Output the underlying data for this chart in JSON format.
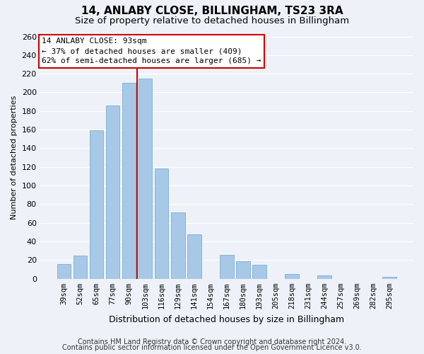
{
  "title": "14, ANLABY CLOSE, BILLINGHAM, TS23 3RA",
  "subtitle": "Size of property relative to detached houses in Billingham",
  "xlabel": "Distribution of detached houses by size in Billingham",
  "ylabel": "Number of detached properties",
  "categories": [
    "39sqm",
    "52sqm",
    "65sqm",
    "77sqm",
    "90sqm",
    "103sqm",
    "116sqm",
    "129sqm",
    "141sqm",
    "154sqm",
    "167sqm",
    "180sqm",
    "193sqm",
    "205sqm",
    "218sqm",
    "231sqm",
    "244sqm",
    "257sqm",
    "269sqm",
    "282sqm",
    "295sqm"
  ],
  "values": [
    16,
    25,
    159,
    186,
    210,
    215,
    118,
    71,
    48,
    0,
    26,
    19,
    15,
    0,
    5,
    0,
    4,
    0,
    0,
    0,
    2
  ],
  "bar_color": "#a8c8e8",
  "bar_edge_color": "#7ab0d0",
  "vline_color": "#cc0000",
  "annotation_title": "14 ANLABY CLOSE: 93sqm",
  "annotation_line1": "← 37% of detached houses are smaller (409)",
  "annotation_line2": "62% of semi-detached houses are larger (685) →",
  "annotation_box_color": "#ffffff",
  "annotation_box_edge": "#cc0000",
  "ylim": [
    0,
    260
  ],
  "yticks": [
    0,
    20,
    40,
    60,
    80,
    100,
    120,
    140,
    160,
    180,
    200,
    220,
    240,
    260
  ],
  "footer1": "Contains HM Land Registry data © Crown copyright and database right 2024.",
  "footer2": "Contains public sector information licensed under the Open Government Licence v3.0.",
  "bg_color": "#eef2f8",
  "grid_color": "#ffffff",
  "title_fontsize": 11,
  "subtitle_fontsize": 9.5,
  "xlabel_fontsize": 9,
  "ylabel_fontsize": 8,
  "footer_fontsize": 7
}
